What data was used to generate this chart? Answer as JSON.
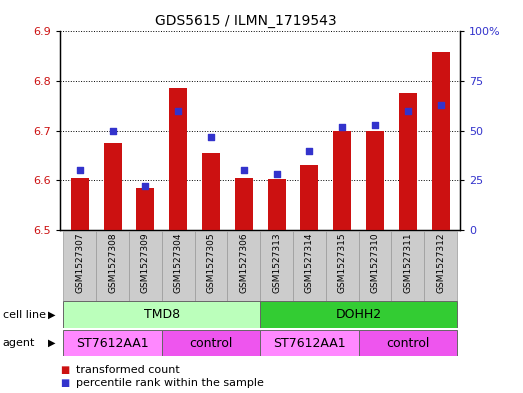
{
  "title": "GDS5615 / ILMN_1719543",
  "samples": [
    "GSM1527307",
    "GSM1527308",
    "GSM1527309",
    "GSM1527304",
    "GSM1527305",
    "GSM1527306",
    "GSM1527313",
    "GSM1527314",
    "GSM1527315",
    "GSM1527310",
    "GSM1527311",
    "GSM1527312"
  ],
  "transformed_counts": [
    6.605,
    6.675,
    6.585,
    6.785,
    6.655,
    6.605,
    6.603,
    6.63,
    6.7,
    6.7,
    6.775,
    6.858
  ],
  "percentile_ranks": [
    30,
    50,
    22,
    60,
    47,
    30,
    28,
    40,
    52,
    53,
    60,
    63
  ],
  "ylim_left": [
    6.5,
    6.9
  ],
  "ylim_right": [
    0,
    100
  ],
  "yticks_left": [
    6.5,
    6.6,
    6.7,
    6.8,
    6.9
  ],
  "yticks_right": [
    0,
    25,
    50,
    75,
    100
  ],
  "ytick_labels_right": [
    "0",
    "25",
    "50",
    "75",
    "100%"
  ],
  "bar_color": "#cc1111",
  "dot_color": "#3333cc",
  "bar_base": 6.5,
  "cell_line_groups": [
    {
      "label": "TMD8",
      "start": 0,
      "end": 6,
      "color": "#bbffbb"
    },
    {
      "label": "DOHH2",
      "start": 6,
      "end": 12,
      "color": "#33cc33"
    }
  ],
  "agent_groups": [
    {
      "label": "ST7612AA1",
      "start": 0,
      "end": 3,
      "color": "#ff88ff"
    },
    {
      "label": "control",
      "start": 3,
      "end": 6,
      "color": "#ee55ee"
    },
    {
      "label": "ST7612AA1",
      "start": 6,
      "end": 9,
      "color": "#ff88ff"
    },
    {
      "label": "control",
      "start": 9,
      "end": 12,
      "color": "#ee55ee"
    }
  ],
  "cell_line_label": "cell line",
  "agent_label": "agent",
  "legend_items": [
    {
      "label": "transformed count",
      "color": "#cc1111"
    },
    {
      "label": "percentile rank within the sample",
      "color": "#3333cc"
    }
  ],
  "grid_color": "black",
  "tick_label_color_left": "#cc1111",
  "tick_label_color_right": "#3333cc",
  "sample_box_color": "#cccccc",
  "bar_width": 0.55
}
